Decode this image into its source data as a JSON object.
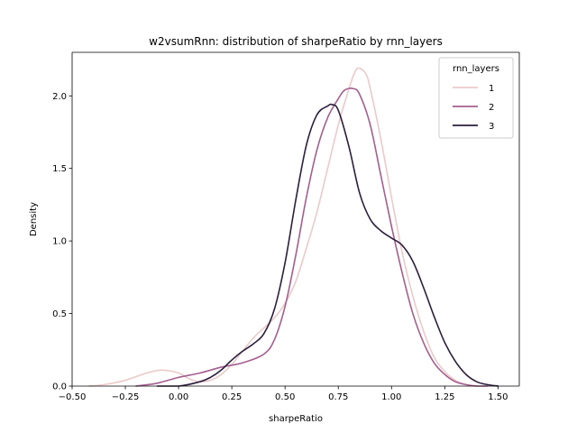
{
  "chart_data": {
    "type": "line",
    "title": "w2vsumRnn: distribution of sharpeRatio by rnn_layers",
    "xlabel": "sharpeRatio",
    "ylabel": "Density",
    "xlim": [
      -0.5,
      1.6
    ],
    "ylim": [
      0,
      2.3
    ],
    "xticks": [
      -0.5,
      -0.25,
      0.0,
      0.25,
      0.5,
      0.75,
      1.0,
      1.25,
      1.5
    ],
    "xtick_labels": [
      "−0.50",
      "−0.25",
      "0.00",
      "0.25",
      "0.50",
      "0.75",
      "1.00",
      "1.25",
      "1.50"
    ],
    "yticks": [
      0.0,
      0.5,
      1.0,
      1.5,
      2.0
    ],
    "ytick_labels": [
      "0.0",
      "0.5",
      "1.0",
      "1.5",
      "2.0"
    ],
    "grid": false,
    "legend": {
      "title": "rnn_layers",
      "placement": "top-right"
    },
    "series": [
      {
        "name": "1",
        "color": "#ebcac9",
        "x": [
          -0.42,
          -0.35,
          -0.25,
          -0.15,
          -0.08,
          0.0,
          0.05,
          0.1,
          0.15,
          0.2,
          0.25,
          0.3,
          0.35,
          0.4,
          0.45,
          0.5,
          0.55,
          0.6,
          0.65,
          0.7,
          0.75,
          0.8,
          0.83,
          0.85,
          0.88,
          0.9,
          0.95,
          1.0,
          1.05,
          1.1,
          1.15,
          1.2,
          1.25,
          1.3,
          1.35,
          1.4
        ],
        "values": [
          0.0,
          0.01,
          0.04,
          0.09,
          0.11,
          0.09,
          0.05,
          0.03,
          0.04,
          0.08,
          0.15,
          0.24,
          0.33,
          0.4,
          0.47,
          0.57,
          0.72,
          0.95,
          1.2,
          1.5,
          1.8,
          2.05,
          2.17,
          2.19,
          2.15,
          2.05,
          1.7,
          1.3,
          0.92,
          0.62,
          0.38,
          0.2,
          0.1,
          0.04,
          0.01,
          0.0
        ]
      },
      {
        "name": "2",
        "color": "#a65e8f",
        "x": [
          -0.2,
          -0.1,
          0.0,
          0.1,
          0.2,
          0.3,
          0.4,
          0.45,
          0.5,
          0.55,
          0.6,
          0.65,
          0.7,
          0.75,
          0.78,
          0.82,
          0.85,
          0.9,
          0.95,
          1.0,
          1.05,
          1.1,
          1.15,
          1.2,
          1.25,
          1.3,
          1.35,
          1.4,
          1.45
        ],
        "values": [
          0.0,
          0.02,
          0.06,
          0.09,
          0.13,
          0.16,
          0.22,
          0.32,
          0.55,
          0.9,
          1.3,
          1.63,
          1.85,
          1.98,
          2.04,
          2.05,
          2.01,
          1.8,
          1.45,
          1.1,
          0.78,
          0.5,
          0.3,
          0.16,
          0.08,
          0.03,
          0.01,
          0.0,
          0.0
        ]
      },
      {
        "name": "3",
        "color": "#2d1e3e",
        "x": [
          -0.1,
          0.0,
          0.1,
          0.15,
          0.2,
          0.25,
          0.3,
          0.35,
          0.4,
          0.45,
          0.5,
          0.55,
          0.6,
          0.65,
          0.7,
          0.72,
          0.75,
          0.8,
          0.85,
          0.9,
          0.95,
          1.0,
          1.05,
          1.1,
          1.15,
          1.2,
          1.25,
          1.3,
          1.35,
          1.4,
          1.45,
          1.5
        ],
        "values": [
          0.0,
          0.0,
          0.03,
          0.06,
          0.11,
          0.18,
          0.24,
          0.29,
          0.36,
          0.53,
          0.85,
          1.28,
          1.66,
          1.87,
          1.93,
          1.94,
          1.9,
          1.65,
          1.33,
          1.15,
          1.07,
          1.02,
          0.97,
          0.86,
          0.68,
          0.48,
          0.3,
          0.17,
          0.08,
          0.03,
          0.01,
          0.0
        ]
      }
    ]
  }
}
